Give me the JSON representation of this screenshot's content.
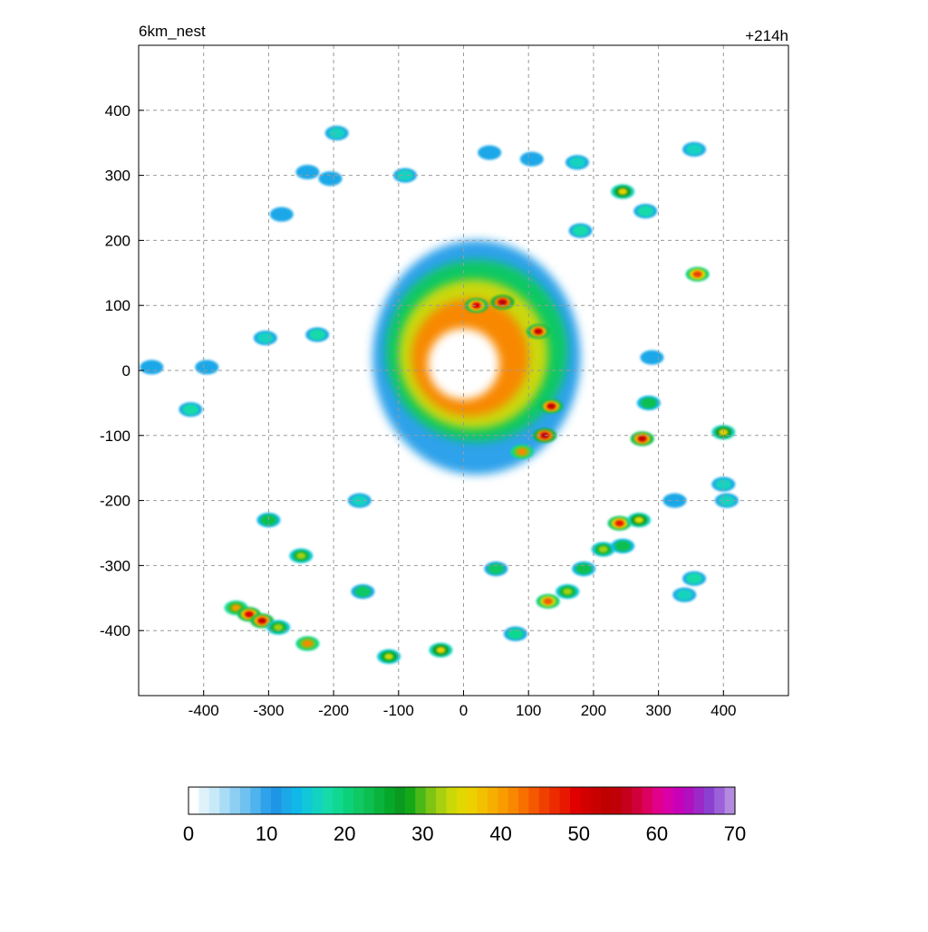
{
  "chart_data": {
    "type": "heatmap",
    "title_left": "6km_nest",
    "title_right": "+214h",
    "x_ticks": [
      -400,
      -300,
      -200,
      -100,
      0,
      100,
      200,
      300,
      400
    ],
    "y_ticks": [
      400,
      300,
      200,
      100,
      0,
      -100,
      -200,
      -300,
      -400
    ],
    "xlim": [
      -500,
      500
    ],
    "ylim": [
      -500,
      500
    ],
    "grid": true,
    "colorbar": {
      "min": 0,
      "max": 70,
      "ticks": [
        0,
        10,
        20,
        30,
        40,
        50,
        60,
        70
      ],
      "colors": [
        "#ffffff",
        "#dff2fb",
        "#c8e9f8",
        "#a9dcf5",
        "#8ccff2",
        "#6fc2ef",
        "#4fb3ed",
        "#2ea2ea",
        "#1e95e5",
        "#1aa8e8",
        "#0fb8e8",
        "#10c8d8",
        "#12d3c0",
        "#14dba8",
        "#10d890",
        "#0dd07a",
        "#10c864",
        "#0cbf50",
        "#0ab43c",
        "#06a82c",
        "#0a9a20",
        "#14a818",
        "#4ab818",
        "#7ec414",
        "#a8d010",
        "#cad808",
        "#e0d800",
        "#ecd000",
        "#f2c000",
        "#f6ae00",
        "#f89c00",
        "#f88800",
        "#f87000",
        "#f45800",
        "#f04000",
        "#ec2c00",
        "#e81800",
        "#e00000",
        "#d40000",
        "#c80000",
        "#c00000",
        "#c00008",
        "#c4001c",
        "#d0003a",
        "#dc0060",
        "#e0008a",
        "#da00a8",
        "#c800b8",
        "#b010c0",
        "#9c28c8",
        "#8c40d0",
        "#9c60d8",
        "#b48ae0"
      ]
    },
    "rain_bands": [
      {
        "cx": 20,
        "cy": 20,
        "rx": 160,
        "ry": 180,
        "value": 10
      },
      {
        "cx": 20,
        "cy": 30,
        "rx": 140,
        "ry": 140,
        "value": 22
      },
      {
        "cx": 15,
        "cy": 25,
        "rx": 115,
        "ry": 115,
        "value": 33
      },
      {
        "cx": 10,
        "cy": 20,
        "rx": 90,
        "ry": 90,
        "value": 42
      },
      {
        "cx": 0,
        "cy": 10,
        "rx": 55,
        "ry": 55,
        "value": 0
      }
    ],
    "cells": [
      {
        "x": -480,
        "y": 5,
        "v": 20
      },
      {
        "x": -395,
        "y": 5,
        "v": 18
      },
      {
        "x": -420,
        "y": -60,
        "v": 24
      },
      {
        "x": -280,
        "y": 240,
        "v": 20
      },
      {
        "x": -195,
        "y": 365,
        "v": 22
      },
      {
        "x": -240,
        "y": 305,
        "v": 18
      },
      {
        "x": -90,
        "y": 300,
        "v": 22
      },
      {
        "x": 40,
        "y": 335,
        "v": 15
      },
      {
        "x": 105,
        "y": 325,
        "v": 18
      },
      {
        "x": 175,
        "y": 320,
        "v": 22
      },
      {
        "x": 245,
        "y": 275,
        "v": 36
      },
      {
        "x": 280,
        "y": 245,
        "v": 24
      },
      {
        "x": 355,
        "y": 340,
        "v": 22
      },
      {
        "x": 360,
        "y": 148,
        "v": 46
      },
      {
        "x": 290,
        "y": 20,
        "v": 20
      },
      {
        "x": 275,
        "y": -105,
        "v": 52
      },
      {
        "x": 285,
        "y": -50,
        "v": 30
      },
      {
        "x": 400,
        "y": -95,
        "v": 36
      },
      {
        "x": 400,
        "y": -175,
        "v": 22
      },
      {
        "x": 325,
        "y": -200,
        "v": 20
      },
      {
        "x": 240,
        "y": -235,
        "v": 48
      },
      {
        "x": 270,
        "y": -230,
        "v": 35
      },
      {
        "x": 215,
        "y": -275,
        "v": 32
      },
      {
        "x": 245,
        "y": -270,
        "v": 30
      },
      {
        "x": 185,
        "y": -305,
        "v": 30
      },
      {
        "x": 130,
        "y": -355,
        "v": 44
      },
      {
        "x": 160,
        "y": -340,
        "v": 32
      },
      {
        "x": 355,
        "y": -320,
        "v": 24
      },
      {
        "x": 80,
        "y": -405,
        "v": 26
      },
      {
        "x": 50,
        "y": -305,
        "v": 28
      },
      {
        "x": -35,
        "y": -430,
        "v": 36
      },
      {
        "x": -115,
        "y": -440,
        "v": 34
      },
      {
        "x": -155,
        "y": -340,
        "v": 28
      },
      {
        "x": -240,
        "y": -420,
        "v": 42
      },
      {
        "x": -250,
        "y": -285,
        "v": 32
      },
      {
        "x": -300,
        "y": -230,
        "v": 30
      },
      {
        "x": -350,
        "y": -365,
        "v": 40
      },
      {
        "x": -330,
        "y": -375,
        "v": 50
      },
      {
        "x": -310,
        "y": -385,
        "v": 52
      },
      {
        "x": -285,
        "y": -395,
        "v": 32
      },
      {
        "x": 125,
        "y": -100,
        "v": 55
      },
      {
        "x": 135,
        "y": -55,
        "v": 52
      },
      {
        "x": 115,
        "y": 60,
        "v": 52
      },
      {
        "x": 60,
        "y": 105,
        "v": 55
      },
      {
        "x": 20,
        "y": 100,
        "v": 50
      },
      {
        "x": 90,
        "y": -125,
        "v": 42
      },
      {
        "x": -160,
        "y": -200,
        "v": 22
      },
      {
        "x": -305,
        "y": 50,
        "v": 22
      },
      {
        "x": -225,
        "y": 55,
        "v": 24
      },
      {
        "x": -205,
        "y": 295,
        "v": 20
      },
      {
        "x": 180,
        "y": 215,
        "v": 24
      },
      {
        "x": 405,
        "y": -200,
        "v": 22
      },
      {
        "x": 340,
        "y": -345,
        "v": 22
      }
    ]
  }
}
